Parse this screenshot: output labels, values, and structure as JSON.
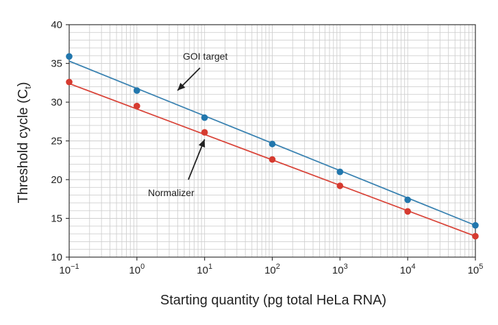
{
  "chart_data": {
    "type": "scatter",
    "title": "",
    "xlabel": "Starting quantity (pg total HeLa RNA)",
    "ylabel": "Threshold cycle (C",
    "ylabel_sub": "t",
    "ylabel_close": ")",
    "x_scale": "log10",
    "xlim_exp": [
      -1,
      5
    ],
    "ylim": [
      10,
      40
    ],
    "y_major_ticks": [
      10,
      15,
      20,
      25,
      30,
      35,
      40
    ],
    "y_minor_step": 1,
    "x_ticks": [
      {
        "exp": -1,
        "base": "10",
        "sup": "−1"
      },
      {
        "exp": 0,
        "base": "10",
        "sup": "0"
      },
      {
        "exp": 1,
        "base": "10",
        "sup": "1"
      },
      {
        "exp": 2,
        "base": "10",
        "sup": "2"
      },
      {
        "exp": 3,
        "base": "10",
        "sup": "3"
      },
      {
        "exp": 4,
        "base": "10",
        "sup": "4"
      },
      {
        "exp": 5,
        "base": "10",
        "sup": "5"
      }
    ],
    "grid": true,
    "series": [
      {
        "name": "GOI target",
        "color": "#3a82b1",
        "point_color": "#2277ad",
        "x_exp": [
          -1,
          0,
          1,
          2,
          3,
          4,
          5
        ],
        "values": [
          35.9,
          31.5,
          28.0,
          24.6,
          21.0,
          17.4,
          14.1
        ],
        "fit": {
          "start": 35.3,
          "end": 14.1
        }
      },
      {
        "name": "Normalizer",
        "color": "#d9453a",
        "point_color": "#d63b30",
        "x_exp": [
          -1,
          0,
          1,
          2,
          3,
          4,
          5
        ],
        "values": [
          32.6,
          29.5,
          26.1,
          22.6,
          19.2,
          15.9,
          12.7
        ],
        "fit": {
          "start": 32.4,
          "end": 12.7
        }
      }
    ],
    "annotations": [
      {
        "text": "GOI target",
        "series": "GOI target",
        "arrow_to": [
          0.6,
          31.5
        ]
      },
      {
        "text": "Normalizer",
        "series": "Normalizer",
        "arrow_to": [
          1.0,
          25.2
        ]
      }
    ]
  }
}
